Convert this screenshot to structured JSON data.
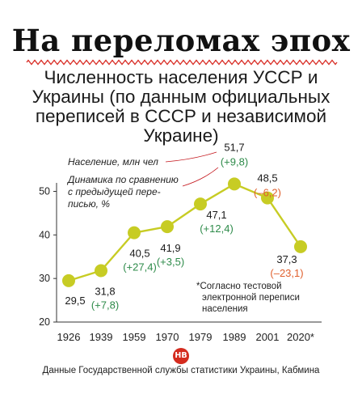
{
  "headline": "На переломах эпох",
  "subtitle": "Численность населения УССР и Украины (по данным официальных переписей в СССР и независимой Украине)",
  "legend": {
    "population": "Население, млн чел",
    "dynamics_line1": "Динамика по сравнению",
    "dynamics_line2": "с предыдущей пере-",
    "dynamics_line3": "писью, %"
  },
  "note": {
    "line1": "*Согласно тестовой",
    "line2": "электронной переписи",
    "line3": "населения"
  },
  "footer": "Данные Государственной службы статистики Украины, Кабмина",
  "logo_text": "НВ",
  "colors": {
    "line": "#c7cc24",
    "marker": "#c7cc24",
    "positive": "#2e8b4a",
    "negative": "#e0602e",
    "wavy": "#d9322b",
    "axis": "#333333"
  },
  "chart_data": {
    "type": "line",
    "categories": [
      "1926",
      "1939",
      "1959",
      "1970",
      "1979",
      "1989",
      "2001",
      "2020*"
    ],
    "values": [
      29.5,
      31.8,
      40.5,
      41.9,
      47.1,
      51.7,
      48.5,
      37.3
    ],
    "value_labels": [
      "29,5",
      "31,8",
      "40,5",
      "41,9",
      "47,1",
      "51,7",
      "48,5",
      "37,3"
    ],
    "change_labels": [
      "",
      "(+7,8)",
      "(+27,4)",
      "(+3,5)",
      "(+12,4)",
      "(+9,8)",
      "(–6,2)",
      "(–23,1)"
    ],
    "changes": [
      null,
      7.8,
      27.4,
      3.5,
      12.4,
      9.8,
      -6.2,
      -23.1
    ],
    "y_ticks": [
      "20",
      "30",
      "40",
      "50"
    ],
    "ylim": [
      20,
      55
    ],
    "xlabel": "",
    "ylabel": "",
    "grid": false
  }
}
